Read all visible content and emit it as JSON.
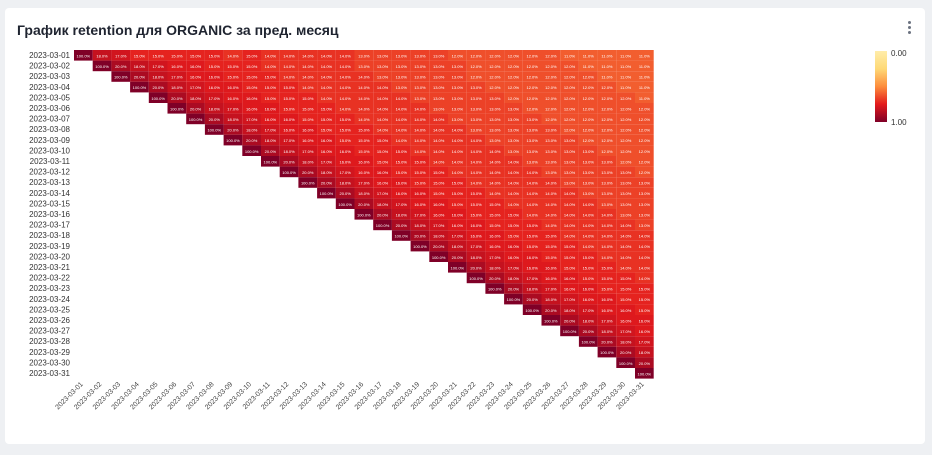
{
  "header": {
    "title": "График retention для ORGANIC за пред. месяц",
    "menu_icon": "more-vertical-icon"
  },
  "chart_data": {
    "type": "heatmap",
    "title": "График retention для ORGANIC за пред. месяц",
    "y_categories": [
      "2023-03-01",
      "2023-03-02",
      "2023-03-03",
      "2023-03-04",
      "2023-03-05",
      "2023-03-06",
      "2023-03-07",
      "2023-03-08",
      "2023-03-09",
      "2023-03-10",
      "2023-03-11",
      "2023-03-12",
      "2023-03-13",
      "2023-03-14",
      "2023-03-15",
      "2023-03-16",
      "2023-03-17",
      "2023-03-18",
      "2023-03-19",
      "2023-03-20",
      "2023-03-21",
      "2023-03-22",
      "2023-03-23",
      "2023-03-24",
      "2023-03-25",
      "2023-03-26",
      "2023-03-27",
      "2023-03-28",
      "2023-03-29",
      "2023-03-30",
      "2023-03-31"
    ],
    "x_categories": [
      "2023-03-01",
      "2023-03-02",
      "2023-03-03",
      "2023-03-04",
      "2023-03-05",
      "2023-03-06",
      "2023-03-07",
      "2023-03-08",
      "2023-03-09",
      "2023-03-10",
      "2023-03-11",
      "2023-03-12",
      "2023-03-13",
      "2023-03-14",
      "2023-03-15",
      "2023-03-16",
      "2023-03-17",
      "2023-03-18",
      "2023-03-19",
      "2023-03-20",
      "2023-03-21",
      "2023-03-22",
      "2023-03-23",
      "2023-03-24",
      "2023-03-25",
      "2023-03-26",
      "2023-03-27",
      "2023-03-28",
      "2023-03-29",
      "2023-03-30",
      "2023-03-31"
    ],
    "color_scale": {
      "min": 0,
      "max": 1,
      "min_label": "0.00",
      "max_label": "1.00",
      "low_color": "#ffedaa",
      "high_color": "#7f0027"
    },
    "legend_position": "top-right",
    "grid": false,
    "values": [
      [
        1,
        0.18,
        0.17,
        0.15,
        0.15,
        0.15,
        0.15,
        0.15,
        0.14,
        0.15,
        0.14,
        0.14,
        0.14,
        0.14,
        0.14,
        0.13,
        0.13,
        0.13,
        0.13,
        0.13,
        0.12,
        0.12,
        0.12,
        0.12,
        0.12,
        0.12,
        0.11,
        0.11,
        0.11,
        0.11,
        0.11
      ],
      [
        null,
        1,
        0.2,
        0.18,
        0.17,
        0.16,
        0.16,
        0.15,
        0.15,
        0.15,
        0.14,
        0.14,
        0.14,
        0.14,
        0.14,
        0.13,
        0.13,
        0.13,
        0.13,
        0.13,
        0.13,
        0.12,
        0.12,
        0.12,
        0.12,
        0.12,
        0.12,
        0.11,
        0.11,
        0.11,
        0.11
      ],
      [
        null,
        null,
        1,
        0.2,
        0.18,
        0.17,
        0.16,
        0.16,
        0.15,
        0.15,
        0.15,
        0.14,
        0.14,
        0.14,
        0.14,
        0.14,
        0.13,
        0.13,
        0.13,
        0.13,
        0.13,
        0.12,
        0.12,
        0.12,
        0.12,
        0.12,
        0.12,
        0.12,
        0.11,
        0.11,
        0.11
      ],
      [
        null,
        null,
        null,
        1,
        0.2,
        0.18,
        0.17,
        0.16,
        0.16,
        0.15,
        0.15,
        0.15,
        0.14,
        0.14,
        0.14,
        0.14,
        0.14,
        0.13,
        0.13,
        0.13,
        0.13,
        0.13,
        0.12,
        0.12,
        0.12,
        0.12,
        0.12,
        0.12,
        0.12,
        0.11,
        0.11
      ],
      [
        null,
        null,
        null,
        null,
        1,
        0.2,
        0.18,
        0.17,
        0.16,
        0.16,
        0.15,
        0.15,
        0.15,
        0.14,
        0.14,
        0.14,
        0.14,
        0.14,
        0.13,
        0.13,
        0.13,
        0.13,
        0.13,
        0.12,
        0.12,
        0.12,
        0.12,
        0.12,
        0.12,
        0.12,
        0.11
      ],
      [
        null,
        null,
        null,
        null,
        null,
        1,
        0.2,
        0.18,
        0.17,
        0.16,
        0.16,
        0.15,
        0.15,
        0.15,
        0.14,
        0.14,
        0.14,
        0.14,
        0.14,
        0.13,
        0.13,
        0.13,
        0.13,
        0.13,
        0.12,
        0.12,
        0.12,
        0.12,
        0.12,
        0.12,
        0.12
      ],
      [
        null,
        null,
        null,
        null,
        null,
        null,
        1,
        0.2,
        0.18,
        0.17,
        0.16,
        0.16,
        0.15,
        0.15,
        0.15,
        0.14,
        0.14,
        0.14,
        0.14,
        0.14,
        0.13,
        0.13,
        0.13,
        0.13,
        0.13,
        0.12,
        0.12,
        0.12,
        0.12,
        0.12,
        0.12
      ],
      [
        null,
        null,
        null,
        null,
        null,
        null,
        null,
        1,
        0.2,
        0.18,
        0.17,
        0.16,
        0.16,
        0.15,
        0.15,
        0.15,
        0.14,
        0.14,
        0.14,
        0.14,
        0.14,
        0.13,
        0.13,
        0.13,
        0.13,
        0.13,
        0.12,
        0.12,
        0.12,
        0.12,
        0.12
      ],
      [
        null,
        null,
        null,
        null,
        null,
        null,
        null,
        null,
        1,
        0.2,
        0.18,
        0.17,
        0.16,
        0.16,
        0.15,
        0.15,
        0.15,
        0.14,
        0.14,
        0.14,
        0.14,
        0.14,
        0.13,
        0.13,
        0.13,
        0.13,
        0.13,
        0.12,
        0.12,
        0.12,
        0.12
      ],
      [
        null,
        null,
        null,
        null,
        null,
        null,
        null,
        null,
        null,
        1,
        0.2,
        0.18,
        0.17,
        0.16,
        0.16,
        0.15,
        0.15,
        0.15,
        0.14,
        0.14,
        0.14,
        0.14,
        0.14,
        0.13,
        0.13,
        0.13,
        0.13,
        0.13,
        0.12,
        0.12,
        0.12
      ],
      [
        null,
        null,
        null,
        null,
        null,
        null,
        null,
        null,
        null,
        null,
        1,
        0.2,
        0.18,
        0.17,
        0.16,
        0.16,
        0.15,
        0.15,
        0.15,
        0.14,
        0.14,
        0.14,
        0.14,
        0.14,
        0.13,
        0.13,
        0.13,
        0.13,
        0.13,
        0.12,
        0.12
      ],
      [
        null,
        null,
        null,
        null,
        null,
        null,
        null,
        null,
        null,
        null,
        null,
        1,
        0.2,
        0.18,
        0.17,
        0.16,
        0.16,
        0.15,
        0.15,
        0.15,
        0.14,
        0.14,
        0.14,
        0.14,
        0.14,
        0.13,
        0.13,
        0.13,
        0.13,
        0.13,
        0.12
      ],
      [
        null,
        null,
        null,
        null,
        null,
        null,
        null,
        null,
        null,
        null,
        null,
        null,
        1,
        0.2,
        0.18,
        0.17,
        0.16,
        0.16,
        0.15,
        0.15,
        0.15,
        0.14,
        0.14,
        0.14,
        0.14,
        0.14,
        0.13,
        0.13,
        0.13,
        0.13,
        0.13
      ],
      [
        null,
        null,
        null,
        null,
        null,
        null,
        null,
        null,
        null,
        null,
        null,
        null,
        null,
        1,
        0.2,
        0.18,
        0.17,
        0.16,
        0.16,
        0.15,
        0.15,
        0.15,
        0.14,
        0.14,
        0.14,
        0.14,
        0.14,
        0.13,
        0.13,
        0.13,
        0.13
      ],
      [
        null,
        null,
        null,
        null,
        null,
        null,
        null,
        null,
        null,
        null,
        null,
        null,
        null,
        null,
        1,
        0.2,
        0.18,
        0.17,
        0.16,
        0.16,
        0.15,
        0.15,
        0.15,
        0.14,
        0.14,
        0.14,
        0.14,
        0.14,
        0.13,
        0.13,
        0.13
      ],
      [
        null,
        null,
        null,
        null,
        null,
        null,
        null,
        null,
        null,
        null,
        null,
        null,
        null,
        null,
        null,
        1,
        0.2,
        0.18,
        0.17,
        0.16,
        0.16,
        0.15,
        0.15,
        0.15,
        0.14,
        0.14,
        0.14,
        0.14,
        0.14,
        0.13,
        0.13
      ],
      [
        null,
        null,
        null,
        null,
        null,
        null,
        null,
        null,
        null,
        null,
        null,
        null,
        null,
        null,
        null,
        null,
        1,
        0.2,
        0.18,
        0.17,
        0.16,
        0.16,
        0.15,
        0.15,
        0.15,
        0.14,
        0.14,
        0.14,
        0.14,
        0.14,
        0.13
      ],
      [
        null,
        null,
        null,
        null,
        null,
        null,
        null,
        null,
        null,
        null,
        null,
        null,
        null,
        null,
        null,
        null,
        null,
        1,
        0.2,
        0.18,
        0.17,
        0.16,
        0.16,
        0.15,
        0.15,
        0.15,
        0.14,
        0.14,
        0.14,
        0.14,
        0.14
      ],
      [
        null,
        null,
        null,
        null,
        null,
        null,
        null,
        null,
        null,
        null,
        null,
        null,
        null,
        null,
        null,
        null,
        null,
        null,
        1,
        0.2,
        0.18,
        0.17,
        0.16,
        0.16,
        0.15,
        0.15,
        0.15,
        0.14,
        0.14,
        0.14,
        0.14
      ],
      [
        null,
        null,
        null,
        null,
        null,
        null,
        null,
        null,
        null,
        null,
        null,
        null,
        null,
        null,
        null,
        null,
        null,
        null,
        null,
        1,
        0.2,
        0.18,
        0.17,
        0.16,
        0.16,
        0.15,
        0.15,
        0.15,
        0.14,
        0.14,
        0.14
      ],
      [
        null,
        null,
        null,
        null,
        null,
        null,
        null,
        null,
        null,
        null,
        null,
        null,
        null,
        null,
        null,
        null,
        null,
        null,
        null,
        null,
        1,
        0.2,
        0.18,
        0.17,
        0.16,
        0.16,
        0.15,
        0.15,
        0.15,
        0.14,
        0.14
      ],
      [
        null,
        null,
        null,
        null,
        null,
        null,
        null,
        null,
        null,
        null,
        null,
        null,
        null,
        null,
        null,
        null,
        null,
        null,
        null,
        null,
        null,
        1,
        0.2,
        0.18,
        0.17,
        0.16,
        0.16,
        0.15,
        0.15,
        0.15,
        0.14
      ],
      [
        null,
        null,
        null,
        null,
        null,
        null,
        null,
        null,
        null,
        null,
        null,
        null,
        null,
        null,
        null,
        null,
        null,
        null,
        null,
        null,
        null,
        null,
        1,
        0.2,
        0.18,
        0.17,
        0.16,
        0.16,
        0.15,
        0.15,
        0.15
      ],
      [
        null,
        null,
        null,
        null,
        null,
        null,
        null,
        null,
        null,
        null,
        null,
        null,
        null,
        null,
        null,
        null,
        null,
        null,
        null,
        null,
        null,
        null,
        null,
        1,
        0.2,
        0.18,
        0.17,
        0.16,
        0.16,
        0.15,
        0.15
      ],
      [
        null,
        null,
        null,
        null,
        null,
        null,
        null,
        null,
        null,
        null,
        null,
        null,
        null,
        null,
        null,
        null,
        null,
        null,
        null,
        null,
        null,
        null,
        null,
        null,
        1,
        0.2,
        0.18,
        0.17,
        0.16,
        0.16,
        0.15
      ],
      [
        null,
        null,
        null,
        null,
        null,
        null,
        null,
        null,
        null,
        null,
        null,
        null,
        null,
        null,
        null,
        null,
        null,
        null,
        null,
        null,
        null,
        null,
        null,
        null,
        null,
        1,
        0.2,
        0.18,
        0.17,
        0.16,
        0.16
      ],
      [
        null,
        null,
        null,
        null,
        null,
        null,
        null,
        null,
        null,
        null,
        null,
        null,
        null,
        null,
        null,
        null,
        null,
        null,
        null,
        null,
        null,
        null,
        null,
        null,
        null,
        null,
        1,
        0.2,
        0.18,
        0.17,
        0.16
      ],
      [
        null,
        null,
        null,
        null,
        null,
        null,
        null,
        null,
        null,
        null,
        null,
        null,
        null,
        null,
        null,
        null,
        null,
        null,
        null,
        null,
        null,
        null,
        null,
        null,
        null,
        null,
        null,
        1,
        0.2,
        0.18,
        0.17
      ],
      [
        null,
        null,
        null,
        null,
        null,
        null,
        null,
        null,
        null,
        null,
        null,
        null,
        null,
        null,
        null,
        null,
        null,
        null,
        null,
        null,
        null,
        null,
        null,
        null,
        null,
        null,
        null,
        null,
        1,
        0.2,
        0.18
      ],
      [
        null,
        null,
        null,
        null,
        null,
        null,
        null,
        null,
        null,
        null,
        null,
        null,
        null,
        null,
        null,
        null,
        null,
        null,
        null,
        null,
        null,
        null,
        null,
        null,
        null,
        null,
        null,
        null,
        null,
        1,
        0.2
      ],
      [
        null,
        null,
        null,
        null,
        null,
        null,
        null,
        null,
        null,
        null,
        null,
        null,
        null,
        null,
        null,
        null,
        null,
        null,
        null,
        null,
        null,
        null,
        null,
        null,
        null,
        null,
        null,
        null,
        null,
        null,
        1
      ]
    ]
  }
}
